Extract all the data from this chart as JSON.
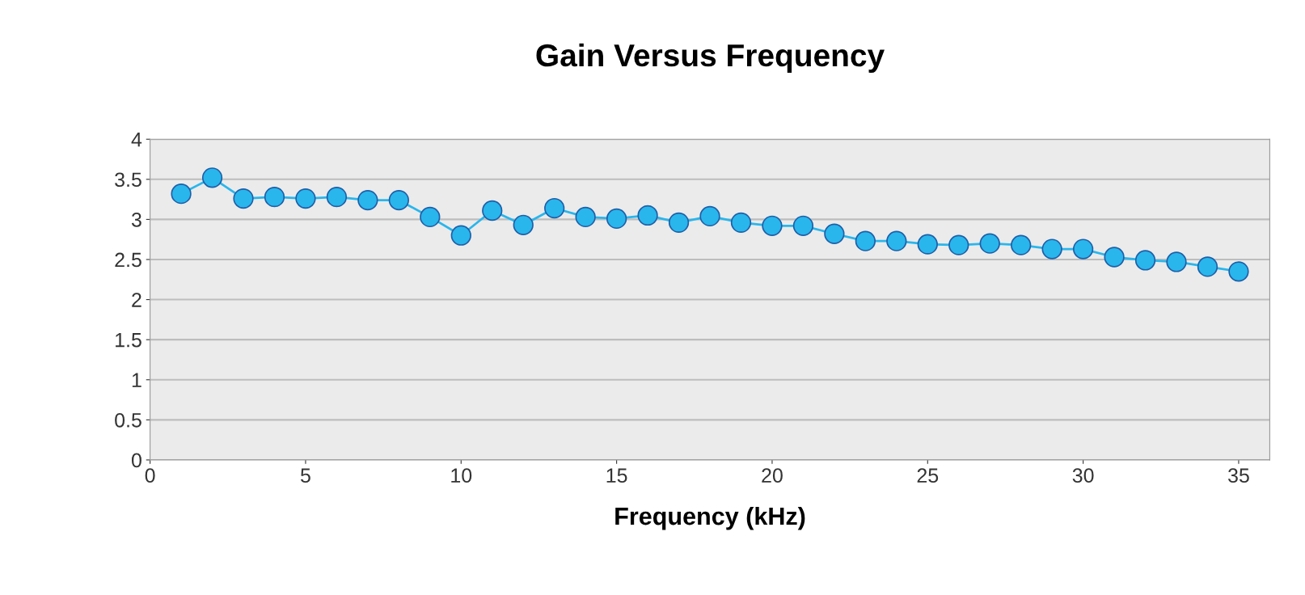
{
  "chart_data": {
    "type": "line",
    "title": "Gain Versus Frequency",
    "xlabel": "Frequency (kHz)",
    "x": [
      1,
      2,
      3,
      4,
      5,
      6,
      7,
      8,
      9,
      10,
      11,
      12,
      13,
      14,
      15,
      16,
      17,
      18,
      19,
      20,
      21,
      22,
      23,
      24,
      25,
      26,
      27,
      28,
      29,
      30,
      31,
      32,
      33,
      34,
      35
    ],
    "series": [
      {
        "color": "#29b6ec",
        "values": [
          3.32,
          3.52,
          3.26,
          3.28,
          3.26,
          3.28,
          3.24,
          3.24,
          3.03,
          2.8,
          3.11,
          2.93,
          3.14,
          3.03,
          3.01,
          3.05,
          2.96,
          3.04,
          2.96,
          2.92,
          2.92,
          2.82,
          2.73,
          2.73,
          2.69,
          2.68,
          2.7,
          2.68,
          2.63,
          2.63,
          2.53,
          2.49,
          2.47,
          2.41,
          2.35
        ]
      }
    ],
    "xlim": [
      0,
      36
    ],
    "xticks": [
      0,
      5,
      10,
      15,
      20,
      25,
      30,
      35
    ],
    "ylim": [
      0,
      4
    ],
    "yticks": [
      0,
      0.5,
      1,
      1.5,
      2,
      2.5,
      3,
      3.5,
      4
    ],
    "grid": "y",
    "marker": "circle",
    "line_style": "solid",
    "legend": false
  }
}
